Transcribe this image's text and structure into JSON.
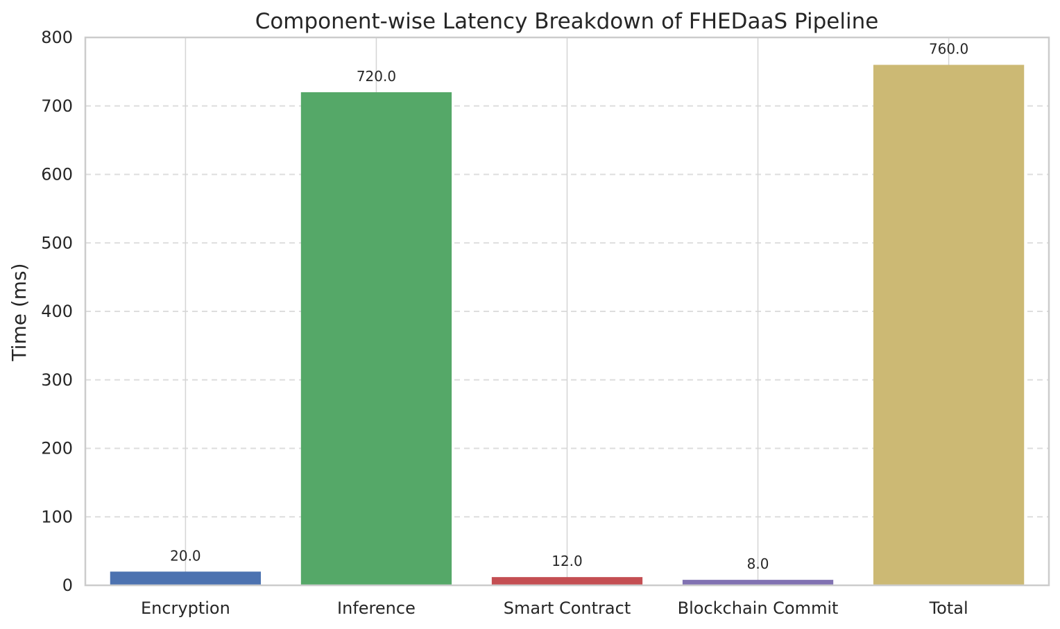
{
  "chart_data": {
    "type": "bar",
    "title": "Component-wise Latency Breakdown of FHEDaaS Pipeline",
    "xlabel": "",
    "ylabel": "Time (ms)",
    "categories": [
      "Encryption",
      "Inference",
      "Smart Contract",
      "Blockchain Commit",
      "Total"
    ],
    "values": [
      20.0,
      720.0,
      12.0,
      8.0,
      760.0
    ],
    "value_labels": [
      "20.0",
      "720.0",
      "12.0",
      "8.0",
      "760.0"
    ],
    "colors": [
      "#4c72b0",
      "#55a868",
      "#c44e52",
      "#8172b2",
      "#ccb974"
    ],
    "ylim": [
      0,
      800
    ],
    "yticks": [
      0,
      100,
      200,
      300,
      400,
      500,
      600,
      700,
      800
    ],
    "ytick_labels": [
      "0",
      "100",
      "200",
      "300",
      "400",
      "500",
      "600",
      "700",
      "800"
    ],
    "grid": {
      "y": "dashed",
      "x": "solid"
    },
    "legend": "none"
  }
}
